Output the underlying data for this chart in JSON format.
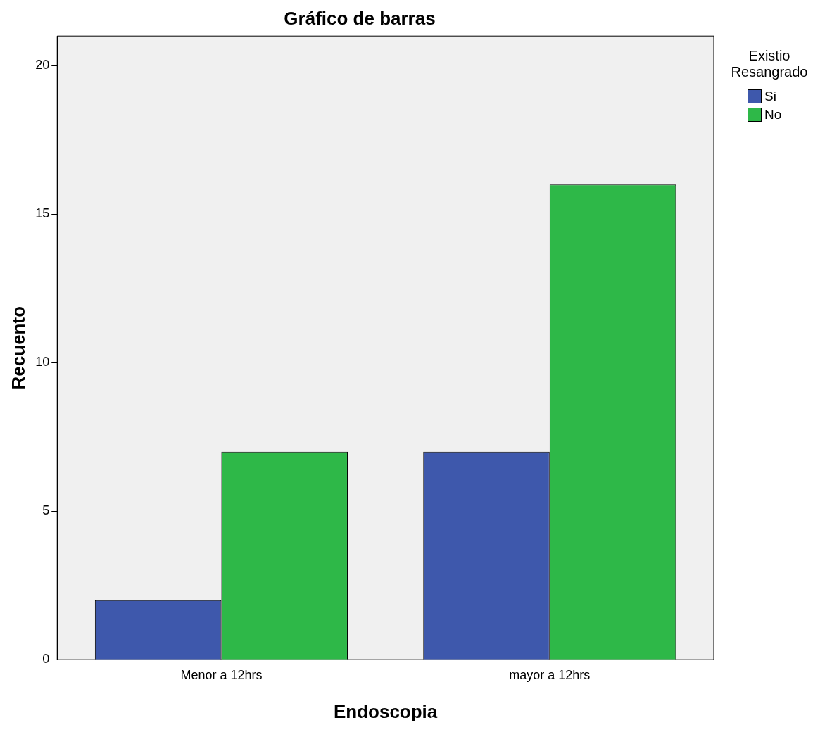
{
  "chart_data": {
    "type": "bar",
    "title": "Gráfico de barras",
    "xlabel": "Endoscopia",
    "ylabel": "Recuento",
    "legend_title": "Existio Resangrado",
    "categories": [
      "Menor a 12hrs",
      "mayor a 12hrs"
    ],
    "series": [
      {
        "name": "Si",
        "color": "#3e58ac",
        "values": [
          2,
          7
        ]
      },
      {
        "name": "No",
        "color": "#2eb848",
        "values": [
          7,
          16
        ]
      }
    ],
    "ylim": [
      0,
      21
    ],
    "yticks": [
      0,
      5,
      10,
      15,
      20
    ],
    "grid": false,
    "legend": "top right"
  }
}
